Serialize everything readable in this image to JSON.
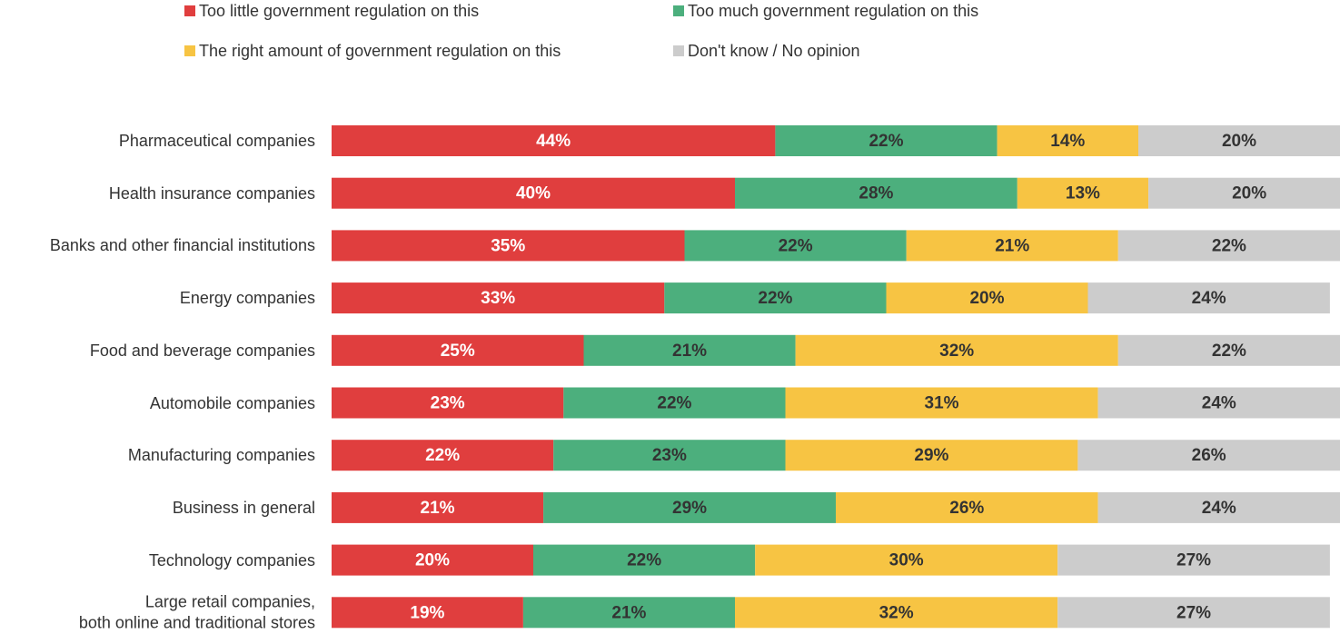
{
  "chart_data": {
    "type": "stacked-bar-horizontal",
    "categories": [
      "Pharmaceutical companies",
      "Health insurance companies",
      "Banks and other financial institutions",
      "Energy companies",
      "Food and beverage companies",
      "Automobile companies",
      "Manufacturing companies",
      "Business in general",
      "Technology companies",
      "Large retail companies,\nboth online and traditional stores"
    ],
    "series": [
      {
        "name": "Too little government regulation on this",
        "color": "#e03e3e",
        "label_color": "#ffffff",
        "values": [
          44,
          40,
          35,
          33,
          25,
          23,
          22,
          21,
          20,
          19
        ],
        "value_labels": [
          "44%",
          "40%",
          "35%",
          "33%",
          "25%",
          "23%",
          "22%",
          "21%",
          "20%",
          "19%"
        ]
      },
      {
        "name": "Too much government regulation on this",
        "color": "#4caf7d",
        "label_color": "#333333",
        "values": [
          22,
          28,
          22,
          22,
          21,
          22,
          23,
          29,
          22,
          21
        ],
        "value_labels": [
          "22%",
          "28%",
          "22%",
          "22%",
          "21%",
          "22%",
          "23%",
          "29%",
          "22%",
          "21%"
        ]
      },
      {
        "name": "The right amount of government regulation on this",
        "color": "#f7c443",
        "label_color": "#333333",
        "values": [
          14,
          13,
          21,
          20,
          32,
          31,
          29,
          26,
          30,
          32
        ],
        "value_labels": [
          "14%",
          "13%",
          "21%",
          "20%",
          "32%",
          "31%",
          "29%",
          "26%",
          "30%",
          "32%"
        ]
      },
      {
        "name": "Don't know / No opinion",
        "color": "#cccccc",
        "label_color": "#333333",
        "values": [
          20,
          20,
          22,
          24,
          22,
          24,
          26,
          24,
          27,
          27
        ],
        "value_labels": [
          "20%",
          "20%",
          "22%",
          "24%",
          "22%",
          "24%",
          "26%",
          "24%",
          "27%",
          "27%"
        ]
      }
    ],
    "xlim": [
      0,
      100
    ]
  }
}
